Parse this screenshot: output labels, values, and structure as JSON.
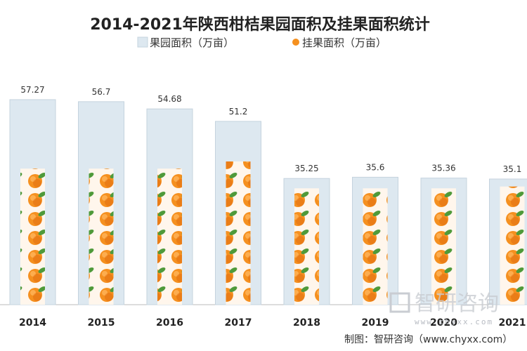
{
  "chart_data": {
    "type": "bar",
    "title": "2014-2021年陕西柑桔果园面积及挂果面积统计",
    "categories": [
      "2014",
      "2015",
      "2016",
      "2017",
      "2018",
      "2019",
      "2020",
      "2021"
    ],
    "series": [
      {
        "name": "果园面积（万亩）",
        "values": [
          57.27,
          56.7,
          54.68,
          51.2,
          35.25,
          35.6,
          35.36,
          35.1
        ],
        "color": "#dde8f0"
      },
      {
        "name": "挂果面积（万亩）",
        "values": [
          38,
          38,
          38,
          40,
          32.5,
          32.5,
          32.5,
          33
        ],
        "color": "#f08a1c",
        "pattern": "orange-fruit"
      }
    ],
    "ylim": [
      0,
      60
    ],
    "grid": false,
    "legend_position": "top"
  },
  "source": "制图：智研咨询（www.chyxx.com）",
  "watermark": {
    "brand": "智研咨询",
    "url": "www.chyxx.com"
  },
  "colors": {
    "bar_outline": "#c5d3de",
    "axis": "#bbbbbb",
    "fruit": "#f5901f",
    "fruit_dark": "#e06a10",
    "leaf": "#4f9a3a"
  }
}
